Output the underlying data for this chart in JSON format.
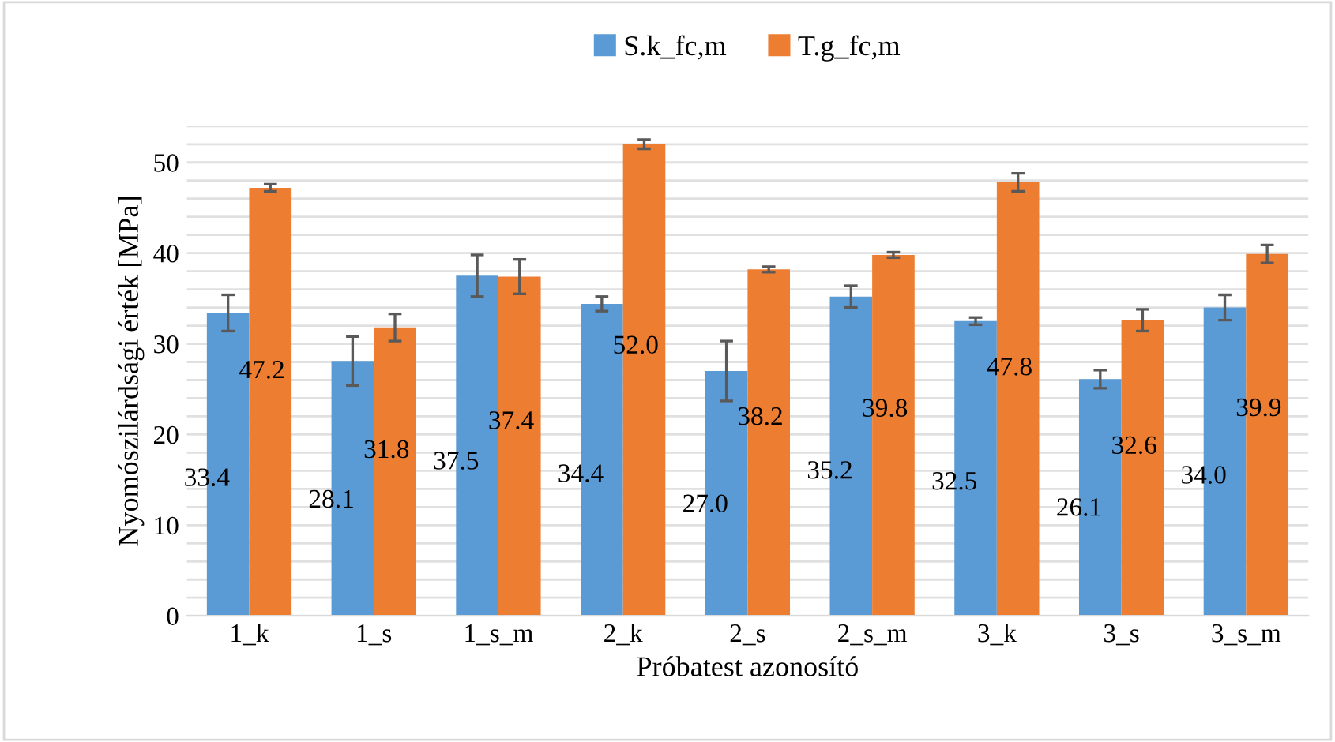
{
  "chart_data": {
    "type": "bar",
    "xlabel": "Próbatest azonosító",
    "ylabel": "Nyomószilárdsági érték [MPa]",
    "categories": [
      "1_k",
      "1_s",
      "1_s_m",
      "2_k",
      "2_s",
      "2_s_m",
      "3_k",
      "3_s",
      "3_s_m"
    ],
    "series": [
      {
        "name": "S.k_fc,m",
        "color": "#5b9bd5",
        "values": [
          33.4,
          28.1,
          37.5,
          34.4,
          27.0,
          35.2,
          32.5,
          26.1,
          34.0
        ],
        "errors": [
          2.0,
          2.7,
          2.3,
          0.8,
          3.3,
          1.2,
          0.4,
          1.0,
          1.4
        ],
        "value_labels": [
          "33.4",
          "28.1",
          "37.5",
          "34.4",
          "27.0",
          "35.2",
          "32.5",
          "26.1",
          "34.0"
        ]
      },
      {
        "name": "T.g_fc,m",
        "color": "#ed7d31",
        "values": [
          47.2,
          31.8,
          37.4,
          52.0,
          38.2,
          39.8,
          47.8,
          32.6,
          39.9
        ],
        "errors": [
          0.4,
          1.5,
          1.9,
          0.5,
          0.3,
          0.3,
          1.0,
          1.2,
          1.0
        ],
        "value_labels": [
          "47.2",
          "31.8",
          "37.4",
          "52.0",
          "38.2",
          "39.8",
          "47.8",
          "32.6",
          "39.9"
        ]
      }
    ],
    "ylim": [
      0,
      54
    ],
    "yticks": [
      0,
      {
        "value": 2,
        "label": null
      },
      {
        "value": 4,
        "label": null
      },
      {
        "value": 6,
        "label": null
      },
      {
        "value": 8,
        "label": null
      },
      10,
      {
        "value": 12,
        "label": null
      },
      {
        "value": 14,
        "label": null
      },
      {
        "value": 16,
        "label": null
      },
      {
        "value": 18,
        "label": null
      },
      20,
      {
        "value": 22,
        "label": null
      },
      {
        "value": 24,
        "label": null
      },
      {
        "value": 26,
        "label": null
      },
      {
        "value": 28,
        "label": null
      },
      30,
      {
        "value": 32,
        "label": null
      },
      {
        "value": 34,
        "label": null
      },
      {
        "value": 36,
        "label": null
      },
      {
        "value": 38,
        "label": null
      },
      40,
      {
        "value": 42,
        "label": null
      },
      {
        "value": 44,
        "label": null
      },
      {
        "value": 46,
        "label": null
      },
      {
        "value": 48,
        "label": null
      },
      50,
      {
        "value": 52,
        "label": null
      },
      {
        "value": 54,
        "label": null
      }
    ],
    "grid": "y",
    "legend": "top"
  }
}
